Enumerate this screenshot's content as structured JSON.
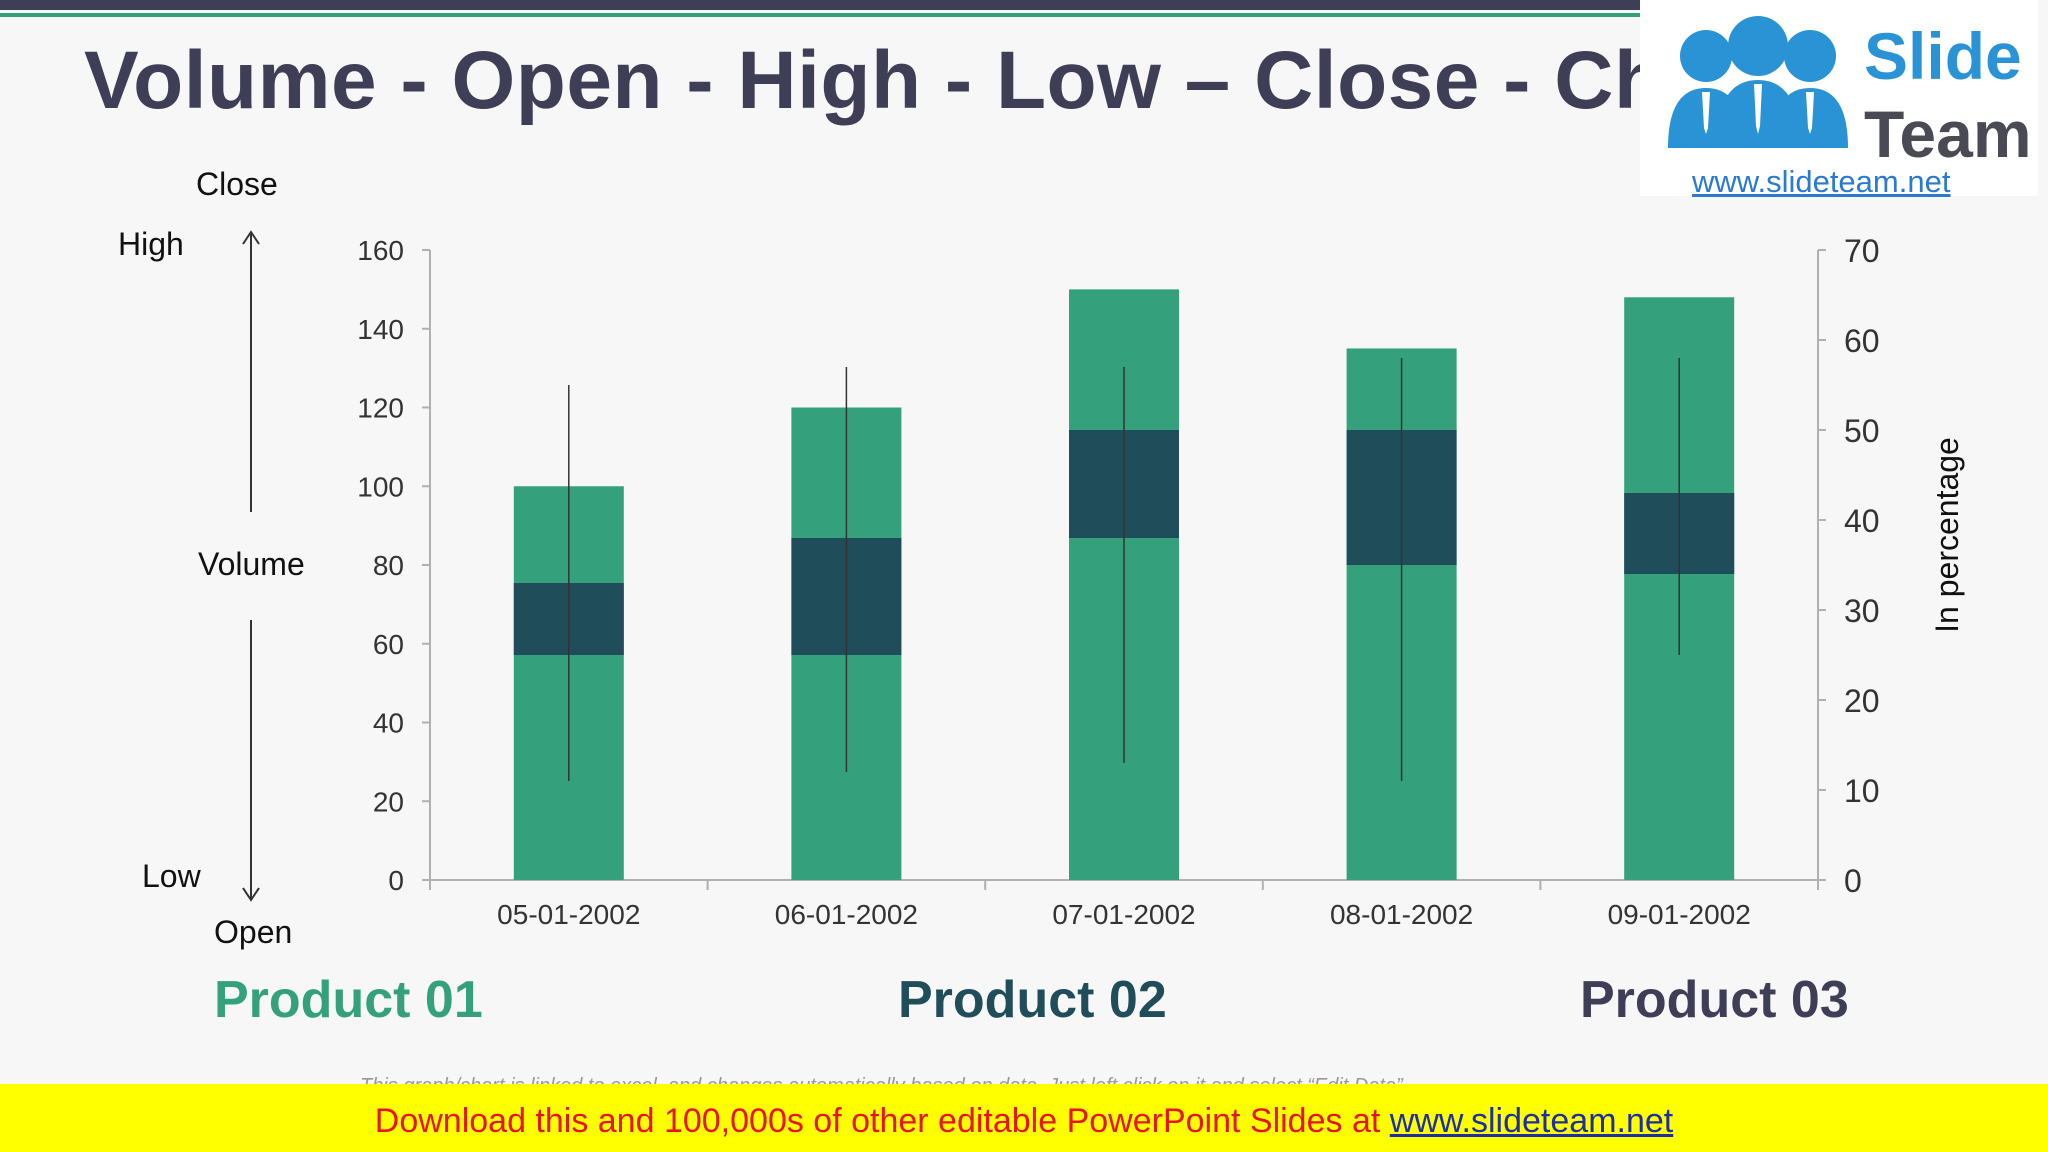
{
  "title": "Volume - Open - High - Low – Close - Chart",
  "logo": {
    "word1": "Slide",
    "word2": "Team",
    "url": "www.slideteam.net"
  },
  "side_labels": {
    "close": "Close",
    "high": "High",
    "volume": "Volume",
    "low": "Low",
    "open": "Open"
  },
  "legend": [
    {
      "label": "Product 01",
      "color": "#35a07c"
    },
    {
      "label": "Product 02",
      "color": "#1f4e5a"
    },
    {
      "label": "Product 03",
      "color": "#3e3e57"
    }
  ],
  "footer": {
    "note": "This graph/chart is linked to excel, and changes automatically based on data. Just left click on it and select “Edit Data”.",
    "text": "Download this and 100,000s of other editable PowerPoint Slides at ",
    "link": "www.slideteam.net"
  },
  "colors": {
    "volume": "#35a07c",
    "body": "#1f4e5a",
    "wick": "#333333",
    "axis": "#b0b0b0"
  },
  "chart_data": {
    "type": "bar",
    "categories": [
      "05-01-2002",
      "06-01-2002",
      "07-01-2002",
      "08-01-2002",
      "09-01-2002"
    ],
    "volume": [
      100,
      120,
      150,
      135,
      148
    ],
    "open": [
      25,
      25,
      38,
      35,
      34
    ],
    "high": [
      55,
      57,
      57,
      58,
      58
    ],
    "low": [
      11,
      12,
      13,
      11,
      25
    ],
    "close": [
      33,
      38,
      50,
      50,
      43
    ],
    "ylim_left": [
      0,
      160
    ],
    "yticks_left": [
      0,
      20,
      40,
      60,
      80,
      100,
      120,
      140,
      160
    ],
    "ylim_right": [
      0,
      70
    ],
    "yticks_right": [
      0,
      10,
      20,
      30,
      40,
      50,
      60,
      70
    ],
    "ylabel_right": "In percentage",
    "grid": false
  }
}
